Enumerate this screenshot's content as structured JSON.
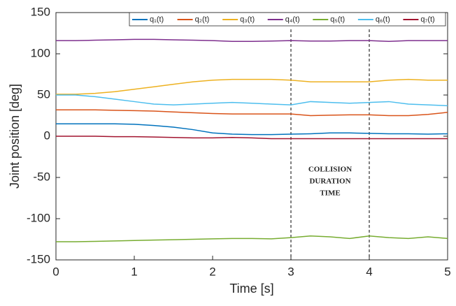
{
  "chart_data": {
    "type": "line",
    "xlabel": "Time [s]",
    "ylabel": "Joint position [deg]",
    "x": [
      0,
      0.25,
      0.5,
      0.75,
      1,
      1.25,
      1.5,
      1.75,
      2,
      2.25,
      2.5,
      2.75,
      3,
      3.25,
      3.5,
      3.75,
      4,
      4.25,
      4.5,
      4.75,
      5
    ],
    "series": [
      {
        "name": "q₁(t)",
        "color": "#0072BD",
        "values": [
          15,
          15,
          15,
          15,
          14.5,
          13,
          11,
          8,
          4,
          2.5,
          2,
          2,
          2.5,
          3,
          4,
          4,
          3.5,
          3,
          3,
          2.5,
          3
        ]
      },
      {
        "name": "q₂(t)",
        "color": "#D95319",
        "values": [
          32,
          32,
          32,
          31.5,
          31,
          30.5,
          29.5,
          28.5,
          27.5,
          27,
          27,
          27,
          27,
          25,
          25.5,
          26,
          26,
          25,
          25,
          26.5,
          29
        ]
      },
      {
        "name": "q₃(t)",
        "color": "#EDB120",
        "values": [
          51,
          51,
          52,
          54,
          57,
          60,
          63,
          66,
          68,
          69,
          69,
          69,
          68,
          66,
          66,
          66,
          66,
          68,
          69,
          68,
          68
        ]
      },
      {
        "name": "q₄(t)",
        "color": "#7E2F8E",
        "values": [
          116,
          116,
          116.5,
          117,
          117.5,
          117.5,
          117,
          116.5,
          116,
          115,
          115,
          115.5,
          116,
          115.5,
          115.5,
          116,
          116,
          115,
          116,
          116,
          116
        ]
      },
      {
        "name": "q₅(t)",
        "color": "#77AC30",
        "values": [
          -128,
          -128,
          -127.5,
          -127,
          -126.5,
          -126,
          -125.5,
          -125,
          -124.5,
          -124,
          -124,
          -124.5,
          -123,
          -121,
          -122,
          -124,
          -121,
          -123,
          -124,
          -122,
          -124
        ]
      },
      {
        "name": "q₆(t)",
        "color": "#4DBEEE",
        "values": [
          50,
          50,
          48,
          45,
          42,
          39,
          38,
          39,
          40,
          41,
          40,
          39,
          38,
          42,
          41,
          40,
          41,
          42,
          39,
          38,
          37
        ]
      },
      {
        "name": "q₇(t)",
        "color": "#A2142F",
        "values": [
          0,
          0,
          0,
          -0.5,
          -0.5,
          -1,
          -1.5,
          -2,
          -2,
          -1.5,
          -2,
          -3,
          -3,
          -3,
          -3,
          -3,
          -3,
          -3,
          -3,
          -3,
          -3
        ]
      }
    ],
    "xlim": [
      0,
      5
    ],
    "xticks": [
      0,
      1,
      2,
      3,
      4,
      5
    ],
    "ylim": [
      -150,
      150
    ],
    "yticks": [
      -150,
      -100,
      -50,
      0,
      50,
      100,
      150
    ],
    "vlines": [
      3,
      4
    ],
    "annotation": [
      "COLLISION",
      "DURATION",
      "TIME"
    ],
    "grid": false,
    "legend": "top"
  }
}
